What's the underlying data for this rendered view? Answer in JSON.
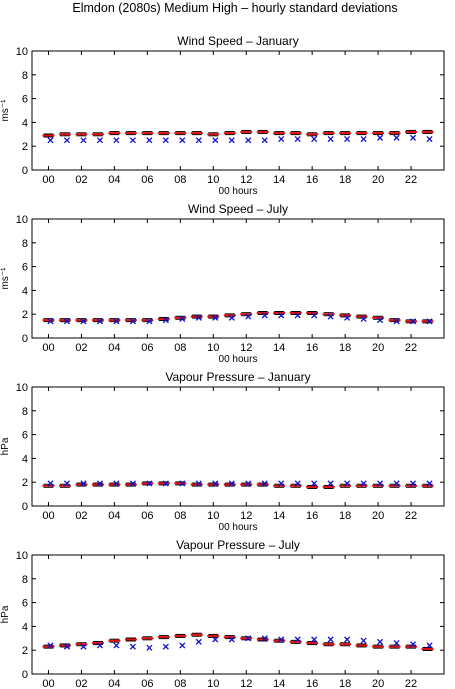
{
  "figure": {
    "title": "Elmdon (2080s) Medium High – hourly standard deviations"
  },
  "colors": {
    "model": "#e01010",
    "observed": "#1010cc",
    "bars": "#000000"
  },
  "chart_data": [
    {
      "type": "scatter",
      "title": "Wind Speed – January",
      "xlabel": "00 hours",
      "ylabel": "ms⁻¹",
      "xlim": [
        -1,
        24
      ],
      "ylim": [
        0,
        10
      ],
      "xticks": [
        "00",
        "02",
        "04",
        "06",
        "08",
        "10",
        "12",
        "14",
        "16",
        "18",
        "20",
        "22"
      ],
      "yticks": [
        "0",
        "2",
        "4",
        "6",
        "8",
        "10"
      ],
      "hours": [
        0,
        1,
        2,
        3,
        4,
        5,
        6,
        7,
        8,
        9,
        10,
        11,
        12,
        13,
        14,
        15,
        16,
        17,
        18,
        19,
        20,
        21,
        22,
        23
      ],
      "series": [
        {
          "role": "model",
          "values": [
            2.9,
            3.0,
            3.0,
            3.0,
            3.1,
            3.1,
            3.1,
            3.1,
            3.1,
            3.1,
            3.0,
            3.1,
            3.2,
            3.2,
            3.1,
            3.1,
            3.0,
            3.1,
            3.1,
            3.1,
            3.1,
            3.1,
            3.2,
            3.2
          ]
        },
        {
          "role": "observed",
          "values": [
            2.5,
            2.5,
            2.5,
            2.5,
            2.5,
            2.5,
            2.5,
            2.5,
            2.5,
            2.5,
            2.5,
            2.5,
            2.5,
            2.5,
            2.6,
            2.6,
            2.6,
            2.6,
            2.6,
            2.6,
            2.7,
            2.7,
            2.7,
            2.6
          ]
        }
      ]
    },
    {
      "type": "scatter",
      "title": "Wind Speed – July",
      "xlabel": "00 hours",
      "ylabel": "ms⁻¹",
      "xlim": [
        -1,
        24
      ],
      "ylim": [
        0,
        10
      ],
      "xticks": [
        "00",
        "02",
        "04",
        "06",
        "08",
        "10",
        "12",
        "14",
        "16",
        "18",
        "20",
        "22"
      ],
      "yticks": [
        "0",
        "2",
        "4",
        "6",
        "8",
        "10"
      ],
      "hours": [
        0,
        1,
        2,
        3,
        4,
        5,
        6,
        7,
        8,
        9,
        10,
        11,
        12,
        13,
        14,
        15,
        16,
        17,
        18,
        19,
        20,
        21,
        22,
        23
      ],
      "series": [
        {
          "role": "model",
          "values": [
            1.5,
            1.5,
            1.5,
            1.5,
            1.5,
            1.5,
            1.5,
            1.6,
            1.7,
            1.8,
            1.8,
            1.9,
            2.0,
            2.1,
            2.1,
            2.1,
            2.1,
            2.0,
            1.9,
            1.8,
            1.7,
            1.5,
            1.4,
            1.4
          ]
        },
        {
          "role": "observed",
          "values": [
            1.4,
            1.4,
            1.4,
            1.4,
            1.4,
            1.4,
            1.4,
            1.5,
            1.6,
            1.7,
            1.7,
            1.7,
            1.8,
            1.9,
            1.9,
            1.9,
            1.9,
            1.8,
            1.7,
            1.6,
            1.5,
            1.4,
            1.4,
            1.4
          ]
        }
      ]
    },
    {
      "type": "scatter",
      "title": "Vapour Pressure – January",
      "xlabel": "00 hours",
      "ylabel": "hPa",
      "xlim": [
        -1,
        24
      ],
      "ylim": [
        0,
        10
      ],
      "xticks": [
        "00",
        "02",
        "04",
        "06",
        "08",
        "10",
        "12",
        "14",
        "16",
        "18",
        "20",
        "22"
      ],
      "yticks": [
        "0",
        "2",
        "4",
        "6",
        "8",
        "10"
      ],
      "hours": [
        0,
        1,
        2,
        3,
        4,
        5,
        6,
        7,
        8,
        9,
        10,
        11,
        12,
        13,
        14,
        15,
        16,
        17,
        18,
        19,
        20,
        21,
        22,
        23
      ],
      "series": [
        {
          "role": "model",
          "values": [
            1.7,
            1.7,
            1.8,
            1.8,
            1.8,
            1.8,
            1.9,
            1.9,
            1.9,
            1.8,
            1.8,
            1.8,
            1.8,
            1.8,
            1.7,
            1.7,
            1.6,
            1.6,
            1.7,
            1.7,
            1.7,
            1.7,
            1.7,
            1.7
          ]
        },
        {
          "role": "observed",
          "values": [
            1.9,
            1.9,
            1.9,
            1.9,
            1.9,
            1.9,
            1.9,
            1.9,
            1.9,
            1.9,
            1.9,
            1.9,
            1.9,
            1.9,
            1.9,
            1.9,
            1.9,
            1.9,
            1.9,
            1.9,
            1.9,
            1.9,
            1.9,
            1.9
          ]
        }
      ]
    },
    {
      "type": "scatter",
      "title": "Vapour Pressure – July",
      "xlabel": "00 hours",
      "ylabel": "hPa",
      "xlim": [
        -1,
        24
      ],
      "ylim": [
        0,
        10
      ],
      "xticks": [
        "00",
        "02",
        "04",
        "06",
        "08",
        "10",
        "12",
        "14",
        "16",
        "18",
        "20",
        "22"
      ],
      "yticks": [
        "0",
        "2",
        "4",
        "6",
        "8",
        "10"
      ],
      "hours": [
        0,
        1,
        2,
        3,
        4,
        5,
        6,
        7,
        8,
        9,
        10,
        11,
        12,
        13,
        14,
        15,
        16,
        17,
        18,
        19,
        20,
        21,
        22,
        23
      ],
      "series": [
        {
          "role": "model",
          "values": [
            2.3,
            2.4,
            2.5,
            2.6,
            2.8,
            2.9,
            3.0,
            3.1,
            3.2,
            3.3,
            3.2,
            3.1,
            3.0,
            2.9,
            2.8,
            2.7,
            2.6,
            2.5,
            2.5,
            2.4,
            2.3,
            2.3,
            2.3,
            2.1
          ]
        },
        {
          "role": "observed",
          "values": [
            2.4,
            2.3,
            2.3,
            2.4,
            2.4,
            2.3,
            2.2,
            2.3,
            2.4,
            2.7,
            2.9,
            2.9,
            3.0,
            3.0,
            2.9,
            2.9,
            2.9,
            2.9,
            2.9,
            2.8,
            2.7,
            2.6,
            2.5,
            2.4
          ]
        }
      ]
    }
  ]
}
